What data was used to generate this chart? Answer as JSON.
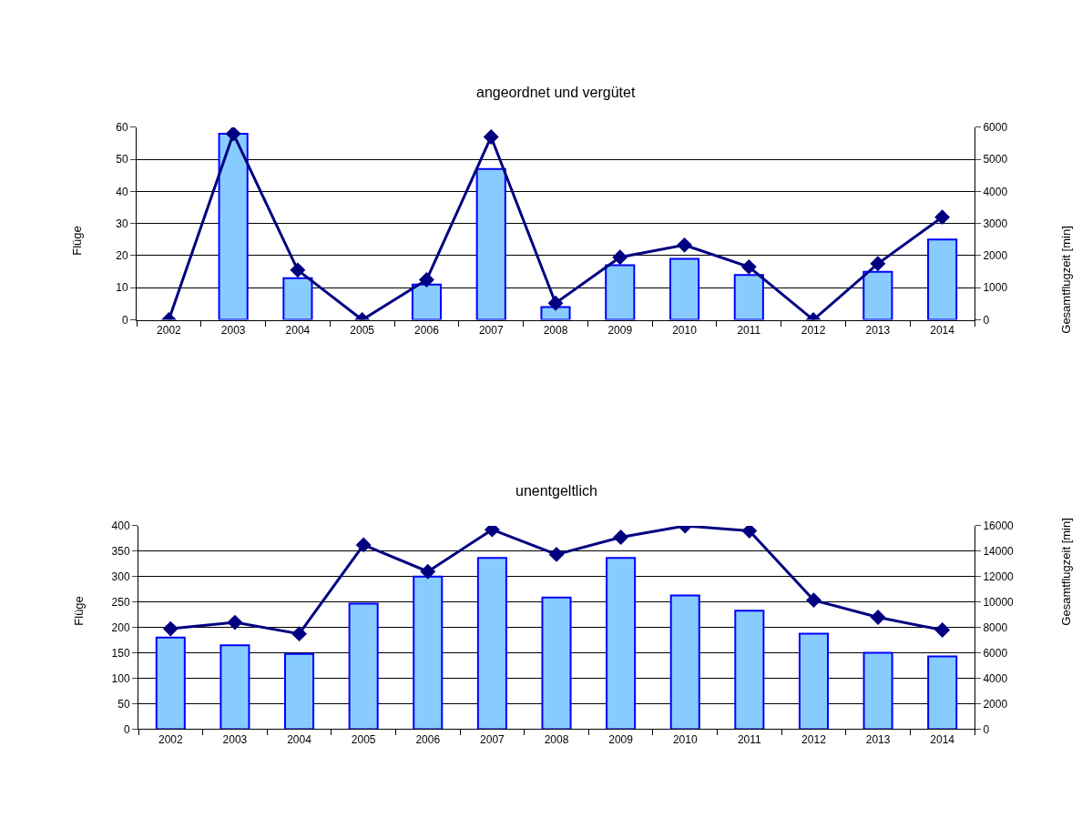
{
  "chart_data": [
    {
      "type": "bar",
      "title": "angeordnet und vergütet",
      "ylabel": "Flüge",
      "y2label": "Gesamtflugzeit [min]",
      "categories": [
        "2002",
        "2003",
        "2004",
        "2005",
        "2006",
        "2007",
        "2008",
        "2009",
        "2010",
        "2011",
        "2012",
        "2013",
        "2014"
      ],
      "series": [
        {
          "color": "#88ccff",
          "values": [
            0,
            58,
            13,
            0,
            11,
            47,
            4,
            17,
            19,
            14,
            0,
            15,
            25
          ]
        },
        {
          "type": "line",
          "axis": "y2",
          "color": "#000080",
          "marker": "diamond",
          "values": [
            0,
            5800,
            1550,
            0,
            1250,
            5700,
            520,
            1950,
            2330,
            1650,
            0,
            1750,
            3200
          ]
        }
      ],
      "ylim": [
        0,
        60
      ],
      "yticks": [
        0,
        10,
        20,
        30,
        40,
        50,
        60
      ],
      "y2lim": [
        0,
        6000
      ],
      "y2ticks": [
        0,
        1000,
        2000,
        3000,
        4000,
        5000,
        6000
      ],
      "grid": "y"
    },
    {
      "type": "bar",
      "title": "unentgeltlich",
      "ylabel": "Flüge",
      "y2label": "Gesamtflugzeit [min]",
      "categories": [
        "2002",
        "2003",
        "2004",
        "2005",
        "2006",
        "2007",
        "2008",
        "2009",
        "2010",
        "2011",
        "2012",
        "2013",
        "2014"
      ],
      "series": [
        {
          "color": "#88ccff",
          "values": [
            180,
            165,
            148,
            247,
            300,
            337,
            259,
            337,
            263,
            233,
            188,
            150,
            143
          ]
        },
        {
          "type": "line",
          "axis": "y2",
          "color": "#000080",
          "marker": "diamond",
          "values": [
            7900,
            8400,
            7500,
            14500,
            12400,
            15700,
            13750,
            15100,
            16000,
            15600,
            10150,
            8800,
            7800
          ]
        }
      ],
      "ylim": [
        0,
        400
      ],
      "yticks": [
        0,
        50,
        100,
        150,
        200,
        250,
        300,
        350,
        400
      ],
      "y2lim": [
        0,
        16000
      ],
      "y2ticks": [
        0,
        2000,
        4000,
        6000,
        8000,
        10000,
        12000,
        14000,
        16000
      ],
      "grid": "y"
    }
  ]
}
